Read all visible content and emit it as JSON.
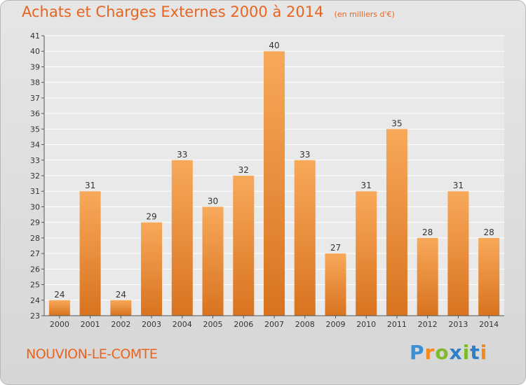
{
  "header": {
    "title": "Achats et Charges Externes 2000 à 2014",
    "subtitle": "(en milliers d'€)"
  },
  "footer": {
    "location": "NOUVION-LE-COMTE",
    "brand": "Proxiti"
  },
  "colors": {
    "accent": "#e8641f",
    "bar_top": "#f7a95a",
    "bar_bottom": "#d9731f"
  },
  "chart_data": {
    "type": "bar",
    "title": "Achats et Charges Externes 2000 à 2014",
    "subtitle": "(en milliers d'€)",
    "xlabel": "",
    "ylabel": "",
    "categories": [
      "2000",
      "2001",
      "2002",
      "2003",
      "2004",
      "2005",
      "2006",
      "2007",
      "2008",
      "2009",
      "2010",
      "2011",
      "2012",
      "2013",
      "2014"
    ],
    "values": [
      24,
      31,
      24,
      29,
      33,
      30,
      32,
      40,
      33,
      27,
      31,
      35,
      28,
      31,
      28
    ],
    "ylim": [
      23,
      41
    ],
    "yticks": [
      23,
      24,
      25,
      26,
      27,
      28,
      29,
      30,
      31,
      32,
      33,
      34,
      35,
      36,
      37,
      38,
      39,
      40,
      41
    ],
    "grid": true,
    "legend": "none"
  }
}
